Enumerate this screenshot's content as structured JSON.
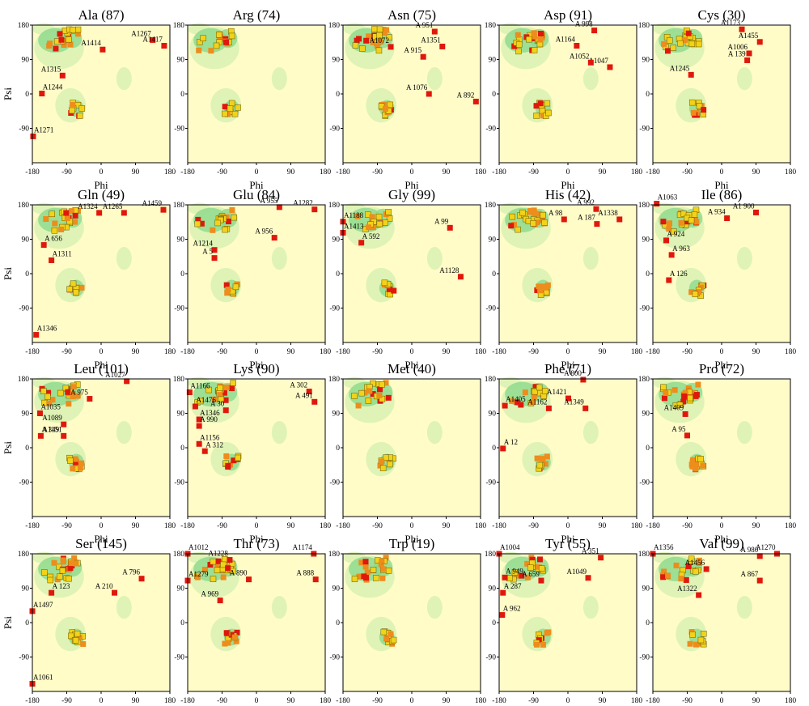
{
  "colors": {
    "background": "#fffcc8",
    "favored": "#8cd98c",
    "allowed": "#d4f0b0",
    "point_core": "#f2d21a",
    "point_allowed": "#ee8c1c",
    "point_outlier": "#e0180c",
    "frame": "#000000"
  },
  "axes": {
    "xlabel": "Phi",
    "ylabel": "Psi",
    "xlim": [
      -180,
      180
    ],
    "ylim": [
      -180,
      180
    ],
    "xticks": [
      -180,
      -90,
      0,
      90,
      180
    ],
    "yticks": [
      180,
      90,
      0,
      -90
    ]
  },
  "chart_data": [
    {
      "type": "scatter",
      "title": "Ala (87)",
      "labels": [
        {
          "text": "A1315",
          "x": -101,
          "y": 48
        },
        {
          "text": "A1244",
          "x": -155,
          "y": 1
        },
        {
          "text": "A1271",
          "x": -178,
          "y": -111
        },
        {
          "text": "A1414",
          "x": 4,
          "y": 116
        },
        {
          "text": "A1267",
          "x": 135,
          "y": 141
        },
        {
          "text": "A1417",
          "x": 165,
          "y": 126
        }
      ]
    },
    {
      "type": "scatter",
      "title": "Arg (74)",
      "labels": []
    },
    {
      "type": "scatter",
      "title": "Asn (75)",
      "labels": [
        {
          "text": "A1072",
          "x": -55,
          "y": 123
        },
        {
          "text": "A 951",
          "x": 60,
          "y": 163
        },
        {
          "text": "A 1076",
          "x": 45,
          "y": 0
        },
        {
          "text": "A 892",
          "x": 168,
          "y": -20
        },
        {
          "text": "A 915",
          "x": 30,
          "y": 97
        },
        {
          "text": "A1351",
          "x": 80,
          "y": 124
        }
      ]
    },
    {
      "type": "scatter",
      "title": "Asp (91)",
      "labels": [
        {
          "text": "A1047",
          "x": 110,
          "y": 70
        },
        {
          "text": "A1052",
          "x": 60,
          "y": 82
        },
        {
          "text": "A1164",
          "x": 23,
          "y": 126
        },
        {
          "text": "A 998",
          "x": 69,
          "y": 166
        }
      ]
    },
    {
      "type": "scatter",
      "title": "Cys (30)",
      "labels": [
        {
          "text": "A1173",
          "x": 53,
          "y": 169
        },
        {
          "text": "A1455",
          "x": 100,
          "y": 136
        },
        {
          "text": "A1006",
          "x": 72,
          "y": 106
        },
        {
          "text": "A 139",
          "x": 67,
          "y": 88
        },
        {
          "text": "A1245",
          "x": -80,
          "y": 50
        }
      ]
    },
    {
      "type": "scatter",
      "title": "Gln (49)",
      "labels": [
        {
          "text": "A 656",
          "x": -150,
          "y": 75
        },
        {
          "text": "A1311",
          "x": -130,
          "y": 35
        },
        {
          "text": "A1346",
          "x": -170,
          "y": -160
        },
        {
          "text": "A1324",
          "x": -5,
          "y": 159
        },
        {
          "text": "A1265",
          "x": 60,
          "y": 159
        },
        {
          "text": "A1459",
          "x": 163,
          "y": 167
        }
      ]
    },
    {
      "type": "scatter",
      "title": "Glu (84)",
      "labels": [
        {
          "text": "A1214",
          "x": -110,
          "y": 62
        },
        {
          "text": "A 5",
          "x": -110,
          "y": 41
        },
        {
          "text": "A 955",
          "x": 60,
          "y": 174
        },
        {
          "text": "A 956",
          "x": 47,
          "y": 94
        },
        {
          "text": "A1282",
          "x": 152,
          "y": 168
        }
      ]
    },
    {
      "type": "scatter",
      "title": "Gly (99)",
      "labels": [
        {
          "text": "A1188",
          "x": -180,
          "y": 136
        },
        {
          "text": "A1413",
          "x": -180,
          "y": 107
        },
        {
          "text": "A 592",
          "x": -132,
          "y": 81
        },
        {
          "text": "A1128",
          "x": 128,
          "y": -8
        },
        {
          "text": "A 99",
          "x": 100,
          "y": 120
        }
      ]
    },
    {
      "type": "scatter",
      "title": "His (42)",
      "labels": [
        {
          "text": "A 992",
          "x": 74,
          "y": 169
        },
        {
          "text": "A 187",
          "x": 76,
          "y": 130
        },
        {
          "text": "A1338",
          "x": 135,
          "y": 142
        },
        {
          "text": "A 98",
          "x": -10,
          "y": 142
        }
      ]
    },
    {
      "type": "scatter",
      "title": "Ile (86)",
      "labels": [
        {
          "text": "A1063",
          "x": -170,
          "y": 183
        },
        {
          "text": "A 934",
          "x": 14,
          "y": 145
        },
        {
          "text": "A 924",
          "x": -145,
          "y": 87
        },
        {
          "text": "A 963",
          "x": -131,
          "y": 49
        },
        {
          "text": "A 126",
          "x": -138,
          "y": -17
        },
        {
          "text": "A1 900",
          "x": 90,
          "y": 160
        }
      ]
    },
    {
      "type": "scatter",
      "title": "Leu (101)",
      "labels": [
        {
          "text": "A 975",
          "x": -30,
          "y": 128
        },
        {
          "text": "A1027",
          "x": 67,
          "y": 174
        },
        {
          "text": "A1035",
          "x": -160,
          "y": 90
        },
        {
          "text": "A1089",
          "x": -98,
          "y": 61
        },
        {
          "text": "A1151",
          "x": -98,
          "y": 31
        },
        {
          "text": "A 349",
          "x": -158,
          "y": 31
        }
      ]
    },
    {
      "type": "scatter",
      "title": "Lys (90)",
      "labels": [
        {
          "text": "A1166",
          "x": -175,
          "y": 145
        },
        {
          "text": "A1476",
          "x": -160,
          "y": 108
        },
        {
          "text": "A1346",
          "x": -150,
          "y": 74
        },
        {
          "text": "A 990",
          "x": -150,
          "y": 57
        },
        {
          "text": "A 30",
          "x": -80,
          "y": 98
        },
        {
          "text": "A1156",
          "x": -150,
          "y": 10
        },
        {
          "text": "A 312",
          "x": -135,
          "y": -9
        },
        {
          "text": "A 302",
          "x": 138,
          "y": 147
        },
        {
          "text": "A 491",
          "x": 152,
          "y": 120
        }
      ]
    },
    {
      "type": "scatter",
      "title": "Met (40)",
      "labels": []
    },
    {
      "type": "scatter",
      "title": "Phe (71)",
      "labels": [
        {
          "text": "A 800",
          "x": 40,
          "y": 178
        },
        {
          "text": "A1405",
          "x": -165,
          "y": 110
        },
        {
          "text": "A1421",
          "x": 1,
          "y": 129
        },
        {
          "text": "A1349",
          "x": 46,
          "y": 103
        },
        {
          "text": "A1162",
          "x": -50,
          "y": 103
        },
        {
          "text": "A 12",
          "x": -170,
          "y": -2
        }
      ]
    },
    {
      "type": "scatter",
      "title": "Pro (72)",
      "labels": [
        {
          "text": "A1409",
          "x": -95,
          "y": 88
        },
        {
          "text": "A 95",
          "x": -90,
          "y": 32
        }
      ]
    },
    {
      "type": "scatter",
      "title": "Ser (145)",
      "labels": [
        {
          "text": "A 123",
          "x": -130,
          "y": 78
        },
        {
          "text": "A1497",
          "x": -180,
          "y": 30
        },
        {
          "text": "A1061",
          "x": -180,
          "y": -160
        },
        {
          "text": "A 210",
          "x": 35,
          "y": 78
        },
        {
          "text": "A 796",
          "x": 106,
          "y": 115
        }
      ]
    },
    {
      "type": "scatter",
      "title": "Thr (73)",
      "labels": [
        {
          "text": "A1012",
          "x": -180,
          "y": 180
        },
        {
          "text": "A1279",
          "x": -180,
          "y": 110
        },
        {
          "text": "A1228",
          "x": -70,
          "y": 164
        },
        {
          "text": "A 890",
          "x": -20,
          "y": 113
        },
        {
          "text": "A 969",
          "x": -95,
          "y": 58
        },
        {
          "text": "A1174",
          "x": 150,
          "y": 180
        },
        {
          "text": "A 888",
          "x": 155,
          "y": 113
        }
      ]
    },
    {
      "type": "scatter",
      "title": "Trp (19)",
      "labels": []
    },
    {
      "type": "scatter",
      "title": "Tyr (55)",
      "labels": [
        {
          "text": "A1004",
          "x": -180,
          "y": 180
        },
        {
          "text": "A 949",
          "x": -165,
          "y": 118
        },
        {
          "text": "A 659",
          "x": -70,
          "y": 110
        },
        {
          "text": "A 287",
          "x": -170,
          "y": 78
        },
        {
          "text": "A 962",
          "x": -172,
          "y": 20
        },
        {
          "text": "A1049",
          "x": 53,
          "y": 117
        },
        {
          "text": "A 351",
          "x": 86,
          "y": 170
        }
      ]
    },
    {
      "type": "scatter",
      "title": "Val (99)",
      "labels": [
        {
          "text": "A1356",
          "x": -180,
          "y": 180
        },
        {
          "text": "A1456",
          "x": -40,
          "y": 140
        },
        {
          "text": "A1322",
          "x": -60,
          "y": 72
        },
        {
          "text": "A1270",
          "x": 145,
          "y": 180
        },
        {
          "text": "A 867",
          "x": 100,
          "y": 110
        },
        {
          "text": "A 980",
          "x": 100,
          "y": 174
        }
      ]
    }
  ]
}
